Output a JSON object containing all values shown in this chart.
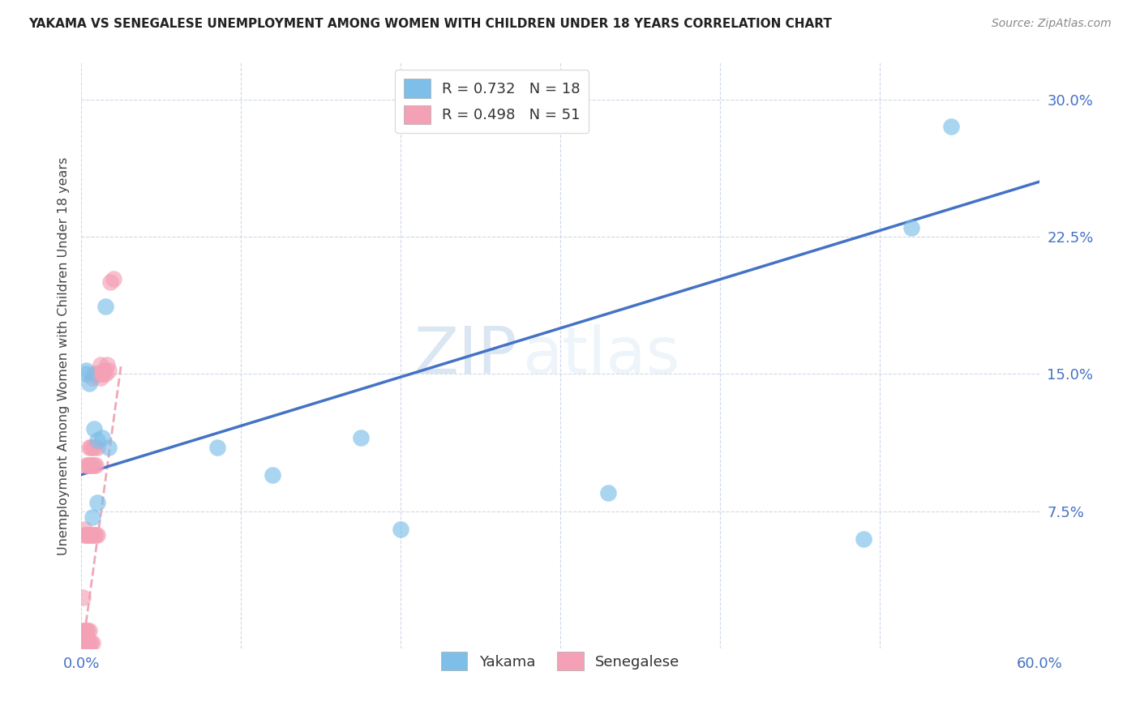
{
  "title": "YAKAMA VS SENEGALESE UNEMPLOYMENT AMONG WOMEN WITH CHILDREN UNDER 18 YEARS CORRELATION CHART",
  "source": "Source: ZipAtlas.com",
  "ylabel": "Unemployment Among Women with Children Under 18 years",
  "xlabel": "",
  "watermark_zip": "ZIP",
  "watermark_atlas": "atlas",
  "xlim": [
    0.0,
    0.6
  ],
  "ylim": [
    0.0,
    0.32
  ],
  "xticks": [
    0.0,
    0.1,
    0.2,
    0.3,
    0.4,
    0.5,
    0.6
  ],
  "xtick_labels": [
    "0.0%",
    "",
    "",
    "",
    "",
    "",
    "60.0%"
  ],
  "ytick_labels": [
    "",
    "7.5%",
    "15.0%",
    "22.5%",
    "30.0%"
  ],
  "yticks": [
    0.0,
    0.075,
    0.15,
    0.225,
    0.3
  ],
  "yakama_R": 0.732,
  "yakama_N": 18,
  "senegalese_R": 0.498,
  "senegalese_N": 51,
  "yakama_color": "#7dbfe8",
  "senegalese_color": "#f4a0b5",
  "trendline_yakama_color": "#4472c4",
  "trendline_senegalese_color": "#e8839a",
  "yakama_x": [
    0.003,
    0.003,
    0.005,
    0.007,
    0.008,
    0.01,
    0.01,
    0.013,
    0.015,
    0.017,
    0.085,
    0.12,
    0.175,
    0.2,
    0.33,
    0.49,
    0.52,
    0.545
  ],
  "yakama_y": [
    0.15,
    0.152,
    0.145,
    0.072,
    0.12,
    0.114,
    0.08,
    0.115,
    0.187,
    0.11,
    0.11,
    0.095,
    0.115,
    0.065,
    0.085,
    0.06,
    0.23,
    0.285
  ],
  "senegalese_x": [
    0.001,
    0.001,
    0.001,
    0.002,
    0.002,
    0.002,
    0.002,
    0.002,
    0.003,
    0.003,
    0.003,
    0.003,
    0.003,
    0.004,
    0.004,
    0.004,
    0.004,
    0.005,
    0.005,
    0.005,
    0.005,
    0.005,
    0.006,
    0.006,
    0.006,
    0.006,
    0.007,
    0.007,
    0.007,
    0.007,
    0.007,
    0.008,
    0.008,
    0.008,
    0.008,
    0.009,
    0.009,
    0.009,
    0.01,
    0.01,
    0.01,
    0.011,
    0.012,
    0.012,
    0.013,
    0.014,
    0.015,
    0.016,
    0.017,
    0.018,
    0.02
  ],
  "senegalese_y": [
    0.007,
    0.01,
    0.028,
    0.003,
    0.007,
    0.01,
    0.062,
    0.065,
    0.003,
    0.007,
    0.01,
    0.062,
    0.1,
    0.003,
    0.01,
    0.062,
    0.1,
    0.003,
    0.01,
    0.062,
    0.1,
    0.11,
    0.003,
    0.062,
    0.1,
    0.11,
    0.003,
    0.062,
    0.1,
    0.11,
    0.148,
    0.062,
    0.1,
    0.11,
    0.15,
    0.062,
    0.1,
    0.15,
    0.062,
    0.11,
    0.15,
    0.15,
    0.148,
    0.155,
    0.15,
    0.152,
    0.15,
    0.155,
    0.152,
    0.2,
    0.202
  ],
  "trendline_yakama_x0": 0.0,
  "trendline_yakama_y0": 0.095,
  "trendline_yakama_x1": 0.6,
  "trendline_yakama_y1": 0.255,
  "trendline_sene_x0": 0.001,
  "trendline_sene_y0": 0.001,
  "trendline_sene_x1": 0.025,
  "trendline_sene_y1": 0.155
}
